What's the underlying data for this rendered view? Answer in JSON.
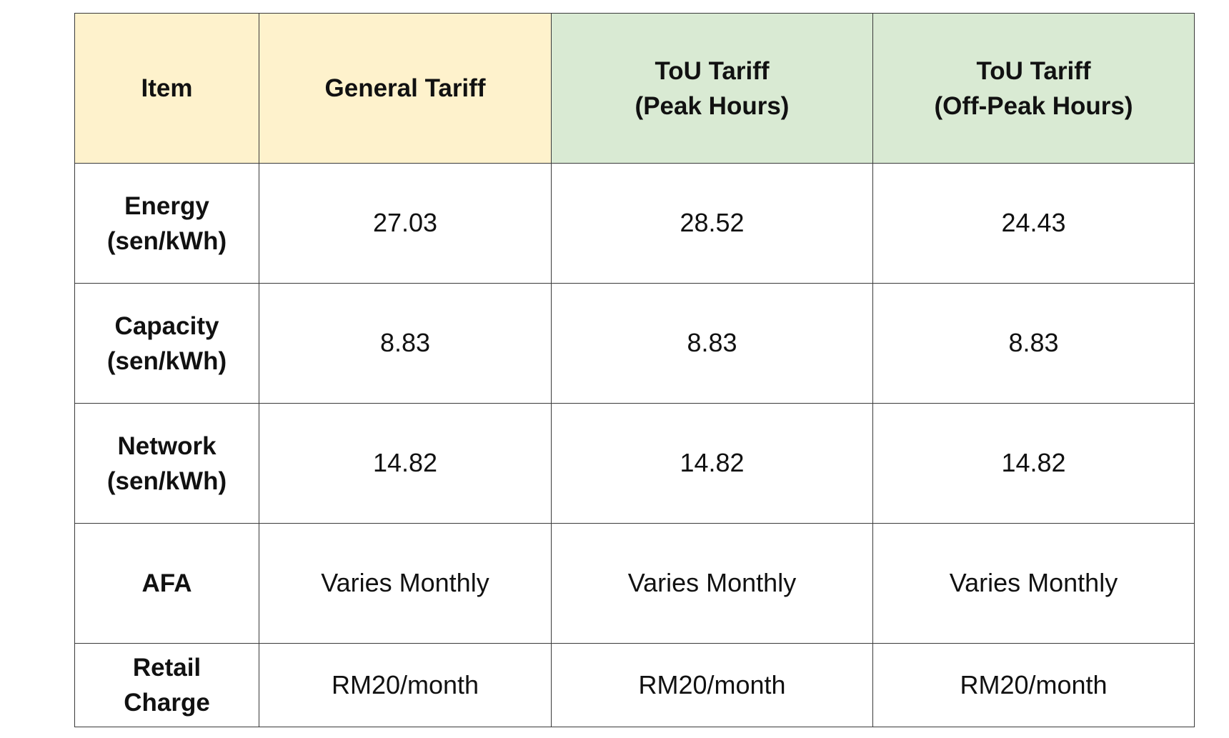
{
  "table": {
    "headers": {
      "item": [
        "Item"
      ],
      "general": [
        "General Tariff"
      ],
      "peak": [
        "ToU Tariff",
        "(Peak Hours)"
      ],
      "offpeak": [
        "ToU Tariff",
        "(Off-Peak Hours)"
      ]
    },
    "header_colors": {
      "yellow": "#fef2cc",
      "green": "#d9ead3"
    },
    "rows": [
      {
        "label": [
          "Energy",
          "(sen/kWh)"
        ],
        "general": "27.03",
        "peak": "28.52",
        "offpeak": "24.43"
      },
      {
        "label": [
          "Capacity",
          "(sen/kWh)"
        ],
        "general": "8.83",
        "peak": "8.83",
        "offpeak": "8.83"
      },
      {
        "label": [
          "Network",
          "(sen/kWh)"
        ],
        "general": "14.82",
        "peak": "14.82",
        "offpeak": "14.82"
      },
      {
        "label": [
          "AFA"
        ],
        "general": "Varies Monthly",
        "peak": "Varies Monthly",
        "offpeak": "Varies Monthly"
      },
      {
        "label": [
          "Retail",
          "Charge"
        ],
        "general": "RM20/month",
        "peak": "RM20/month",
        "offpeak": "RM20/month"
      }
    ]
  }
}
